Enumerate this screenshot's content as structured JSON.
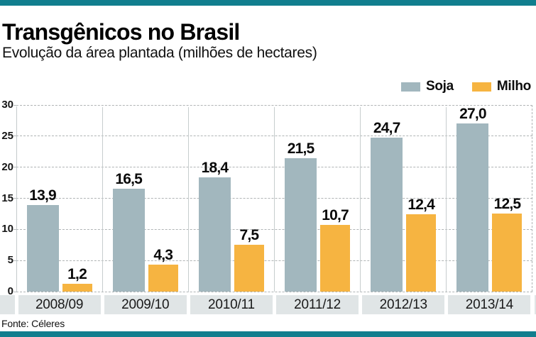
{
  "header": {
    "title": "Transgênicos no Brasil",
    "subtitle": "Evolução da área plantada (milhões de hectares)"
  },
  "chart_data": {
    "type": "bar",
    "title": "Transgênicos no Brasil",
    "subtitle": "Evolução da área plantada (milhões de hectares)",
    "unit": "milhões de hectares",
    "categories": [
      "2008/09",
      "2009/10",
      "2010/11",
      "2011/12",
      "2012/13",
      "2013/14"
    ],
    "series": [
      {
        "name": "Soja",
        "color": "#a2b7be",
        "values": [
          13.9,
          16.5,
          18.4,
          21.5,
          24.7,
          27.0
        ]
      },
      {
        "name": "Milho",
        "color": "#f6b441",
        "values": [
          1.2,
          4.3,
          7.5,
          10.7,
          12.4,
          12.5
        ]
      }
    ],
    "ylim": [
      0,
      30
    ],
    "yticks": [
      0,
      5,
      10,
      15,
      20,
      25,
      30
    ],
    "grid": "horizontal-dashed",
    "legend_position": "top-right",
    "decimal_separator": ","
  },
  "footer": {
    "source": "Fonte: Céleres"
  },
  "theme": {
    "accent_teal": "#117e8e",
    "soja_color": "#a2b7be",
    "milho_color": "#f6b441",
    "band_gray": "#e0e5e6",
    "grid_gray": "#b0b4b5"
  }
}
